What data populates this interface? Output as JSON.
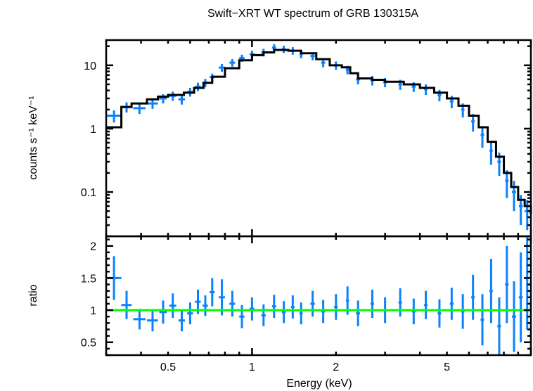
{
  "chart_data": {
    "type": "scatter",
    "title": "Swift−XRT WT spectrum of GRB 130315A",
    "xlabel": "Energy (keV)",
    "x_scale": "log",
    "xlim": [
      0.3,
      10
    ],
    "x_ticks": [
      {
        "value": 0.5,
        "label": "0.5"
      },
      {
        "value": 1,
        "label": "1"
      },
      {
        "value": 2,
        "label": "2"
      },
      {
        "value": 5,
        "label": "5"
      }
    ],
    "colors": {
      "data": "#0a82ff",
      "model": "#000000",
      "unity": "#00ff00",
      "frame": "#000000"
    },
    "panels": [
      {
        "name": "spectrum",
        "ylabel": "counts s⁻¹ keV⁻¹",
        "y_scale": "log",
        "ylim": [
          0.02,
          25
        ],
        "y_ticks": [
          {
            "value": 0.1,
            "label": "0.1"
          },
          {
            "value": 1,
            "label": "1"
          },
          {
            "value": 10,
            "label": "10"
          }
        ],
        "series": [
          {
            "name": "data",
            "style": "crosses",
            "points": [
              {
                "x": 0.32,
                "xerr": 0.02,
                "y": 1.6,
                "yerr": 0.35
              },
              {
                "x": 0.355,
                "xerr": 0.015,
                "y": 2.2,
                "yerr": 0.4
              },
              {
                "x": 0.395,
                "xerr": 0.02,
                "y": 2.1,
                "yerr": 0.4
              },
              {
                "x": 0.44,
                "xerr": 0.02,
                "y": 2.5,
                "yerr": 0.45
              },
              {
                "x": 0.48,
                "xerr": 0.015,
                "y": 3.0,
                "yerr": 0.5
              },
              {
                "x": 0.52,
                "xerr": 0.015,
                "y": 3.3,
                "yerr": 0.55
              },
              {
                "x": 0.56,
                "xerr": 0.015,
                "y": 2.9,
                "yerr": 0.5
              },
              {
                "x": 0.6,
                "xerr": 0.015,
                "y": 3.8,
                "yerr": 0.6
              },
              {
                "x": 0.64,
                "xerr": 0.015,
                "y": 4.6,
                "yerr": 0.7
              },
              {
                "x": 0.68,
                "xerr": 0.015,
                "y": 5.3,
                "yerr": 0.8
              },
              {
                "x": 0.72,
                "xerr": 0.015,
                "y": 6.5,
                "yerr": 0.9
              },
              {
                "x": 0.78,
                "xerr": 0.02,
                "y": 9.2,
                "yerr": 1.3
              },
              {
                "x": 0.85,
                "xerr": 0.02,
                "y": 11,
                "yerr": 1.5
              },
              {
                "x": 0.92,
                "xerr": 0.02,
                "y": 13,
                "yerr": 1.7
              },
              {
                "x": 1.0,
                "xerr": 0.02,
                "y": 15,
                "yerr": 2
              },
              {
                "x": 1.1,
                "xerr": 0.02,
                "y": 16,
                "yerr": 2.2
              },
              {
                "x": 1.2,
                "xerr": 0.02,
                "y": 19,
                "yerr": 2.5
              },
              {
                "x": 1.3,
                "xerr": 0.02,
                "y": 18,
                "yerr": 2.4
              },
              {
                "x": 1.4,
                "xerr": 0.02,
                "y": 17,
                "yerr": 2.3
              },
              {
                "x": 1.5,
                "xerr": 0.02,
                "y": 15,
                "yerr": 2.1
              },
              {
                "x": 1.65,
                "xerr": 0.03,
                "y": 14,
                "yerr": 2
              },
              {
                "x": 1.8,
                "xerr": 0.03,
                "y": 11,
                "yerr": 1.7
              },
              {
                "x": 2.0,
                "xerr": 0.03,
                "y": 10,
                "yerr": 1.5
              },
              {
                "x": 2.2,
                "xerr": 0.03,
                "y": 8.5,
                "yerr": 1.3
              },
              {
                "x": 2.4,
                "xerr": 0.04,
                "y": 6.0,
                "yerr": 1
              },
              {
                "x": 2.7,
                "xerr": 0.04,
                "y": 5.8,
                "yerr": 1
              },
              {
                "x": 3.0,
                "xerr": 0.05,
                "y": 5.4,
                "yerr": 0.9
              },
              {
                "x": 3.4,
                "xerr": 0.05,
                "y": 5.0,
                "yerr": 0.9
              },
              {
                "x": 3.8,
                "xerr": 0.06,
                "y": 4.6,
                "yerr": 0.8
              },
              {
                "x": 4.2,
                "xerr": 0.06,
                "y": 4.2,
                "yerr": 0.8
              },
              {
                "x": 4.7,
                "xerr": 0.07,
                "y": 3.4,
                "yerr": 0.7
              },
              {
                "x": 5.2,
                "xerr": 0.08,
                "y": 2.7,
                "yerr": 0.6
              },
              {
                "x": 5.7,
                "xerr": 0.08,
                "y": 2.0,
                "yerr": 0.5
              },
              {
                "x": 6.2,
                "xerr": 0.09,
                "y": 1.3,
                "yerr": 0.4
              },
              {
                "x": 6.7,
                "xerr": 0.1,
                "y": 0.8,
                "yerr": 0.3
              },
              {
                "x": 7.2,
                "xerr": 0.1,
                "y": 0.45,
                "yerr": 0.18
              },
              {
                "x": 7.7,
                "xerr": 0.12,
                "y": 0.3,
                "yerr": 0.12
              },
              {
                "x": 8.2,
                "xerr": 0.12,
                "y": 0.15,
                "yerr": 0.07
              },
              {
                "x": 8.7,
                "xerr": 0.15,
                "y": 0.1,
                "yerr": 0.05
              },
              {
                "x": 9.2,
                "xerr": 0.15,
                "y": 0.06,
                "yerr": 0.03
              },
              {
                "x": 9.7,
                "xerr": 0.2,
                "y": 0.05,
                "yerr": 0.025
              }
            ]
          },
          {
            "name": "model",
            "style": "step",
            "points": [
              {
                "x": 0.3,
                "y": 1.05
              },
              {
                "x": 0.34,
                "y": 2.2
              },
              {
                "x": 0.37,
                "y": 2.5
              },
              {
                "x": 0.42,
                "y": 2.9
              },
              {
                "x": 0.46,
                "y": 3.2
              },
              {
                "x": 0.5,
                "y": 3.4
              },
              {
                "x": 0.57,
                "y": 3.7
              },
              {
                "x": 0.62,
                "y": 4.4
              },
              {
                "x": 0.67,
                "y": 5.3
              },
              {
                "x": 0.72,
                "y": 6.6
              },
              {
                "x": 0.8,
                "y": 9
              },
              {
                "x": 0.9,
                "y": 12
              },
              {
                "x": 1.0,
                "y": 14.5
              },
              {
                "x": 1.1,
                "y": 16
              },
              {
                "x": 1.2,
                "y": 17.5
              },
              {
                "x": 1.35,
                "y": 17
              },
              {
                "x": 1.5,
                "y": 15.5
              },
              {
                "x": 1.7,
                "y": 12.5
              },
              {
                "x": 1.9,
                "y": 10
              },
              {
                "x": 2.1,
                "y": 9.3
              },
              {
                "x": 2.25,
                "y": 7.5
              },
              {
                "x": 2.4,
                "y": 6.2
              },
              {
                "x": 2.7,
                "y": 5.9
              },
              {
                "x": 3.0,
                "y": 5.5
              },
              {
                "x": 3.5,
                "y": 5.0
              },
              {
                "x": 4.0,
                "y": 4.4
              },
              {
                "x": 4.5,
                "y": 3.7
              },
              {
                "x": 5.0,
                "y": 3.0
              },
              {
                "x": 5.5,
                "y": 2.3
              },
              {
                "x": 6.0,
                "y": 1.6
              },
              {
                "x": 6.5,
                "y": 1.05
              },
              {
                "x": 7.0,
                "y": 0.62
              },
              {
                "x": 7.5,
                "y": 0.36
              },
              {
                "x": 8.0,
                "y": 0.2
              },
              {
                "x": 8.5,
                "y": 0.12
              },
              {
                "x": 9.0,
                "y": 0.075
              },
              {
                "x": 9.5,
                "y": 0.06
              },
              {
                "x": 10.0,
                "y": 0.045
              }
            ]
          }
        ]
      },
      {
        "name": "ratio",
        "ylabel": "ratio",
        "y_scale": "linear",
        "ylim": [
          0.3,
          2.15
        ],
        "y_ticks": [
          {
            "value": 0.5,
            "label": "0.5"
          },
          {
            "value": 1,
            "label": "1"
          },
          {
            "value": 1.5,
            "label": "1.5"
          },
          {
            "value": 2,
            "label": "2"
          }
        ],
        "reference_line": 1,
        "series": [
          {
            "name": "data/model",
            "style": "crosses",
            "points": [
              {
                "x": 0.32,
                "xerr": 0.02,
                "y": 1.5,
                "yerr": 0.34
              },
              {
                "x": 0.355,
                "xerr": 0.015,
                "y": 1.08,
                "yerr": 0.22
              },
              {
                "x": 0.395,
                "xerr": 0.02,
                "y": 0.86,
                "yerr": 0.16
              },
              {
                "x": 0.44,
                "xerr": 0.02,
                "y": 0.84,
                "yerr": 0.17
              },
              {
                "x": 0.48,
                "xerr": 0.015,
                "y": 0.97,
                "yerr": 0.18
              },
              {
                "x": 0.52,
                "xerr": 0.015,
                "y": 1.07,
                "yerr": 0.19
              },
              {
                "x": 0.56,
                "xerr": 0.015,
                "y": 0.84,
                "yerr": 0.17
              },
              {
                "x": 0.6,
                "xerr": 0.015,
                "y": 0.95,
                "yerr": 0.17
              },
              {
                "x": 0.64,
                "xerr": 0.015,
                "y": 1.13,
                "yerr": 0.19
              },
              {
                "x": 0.68,
                "xerr": 0.015,
                "y": 1.07,
                "yerr": 0.16
              },
              {
                "x": 0.72,
                "xerr": 0.015,
                "y": 1.28,
                "yerr": 0.22
              },
              {
                "x": 0.78,
                "xerr": 0.02,
                "y": 1.2,
                "yerr": 0.28
              },
              {
                "x": 0.85,
                "xerr": 0.02,
                "y": 1.1,
                "yerr": 0.2
              },
              {
                "x": 0.92,
                "xerr": 0.02,
                "y": 0.9,
                "yerr": 0.18
              },
              {
                "x": 1.0,
                "xerr": 0.02,
                "y": 1.02,
                "yerr": 0.18
              },
              {
                "x": 1.1,
                "xerr": 0.02,
                "y": 0.92,
                "yerr": 0.17
              },
              {
                "x": 1.2,
                "xerr": 0.02,
                "y": 1.06,
                "yerr": 0.18
              },
              {
                "x": 1.3,
                "xerr": 0.02,
                "y": 0.97,
                "yerr": 0.17
              },
              {
                "x": 1.4,
                "xerr": 0.02,
                "y": 1.05,
                "yerr": 0.18
              },
              {
                "x": 1.5,
                "xerr": 0.02,
                "y": 0.95,
                "yerr": 0.17
              },
              {
                "x": 1.65,
                "xerr": 0.03,
                "y": 1.1,
                "yerr": 0.2
              },
              {
                "x": 1.8,
                "xerr": 0.03,
                "y": 0.98,
                "yerr": 0.18
              },
              {
                "x": 2.0,
                "xerr": 0.03,
                "y": 1.05,
                "yerr": 0.2
              },
              {
                "x": 2.2,
                "xerr": 0.03,
                "y": 1.15,
                "yerr": 0.22
              },
              {
                "x": 2.4,
                "xerr": 0.04,
                "y": 0.95,
                "yerr": 0.2
              },
              {
                "x": 2.7,
                "xerr": 0.04,
                "y": 1.1,
                "yerr": 0.22
              },
              {
                "x": 3.0,
                "xerr": 0.05,
                "y": 1.0,
                "yerr": 0.2
              },
              {
                "x": 3.4,
                "xerr": 0.05,
                "y": 1.12,
                "yerr": 0.22
              },
              {
                "x": 3.8,
                "xerr": 0.06,
                "y": 0.98,
                "yerr": 0.2
              },
              {
                "x": 4.2,
                "xerr": 0.06,
                "y": 1.08,
                "yerr": 0.22
              },
              {
                "x": 4.7,
                "xerr": 0.07,
                "y": 0.95,
                "yerr": 0.22
              },
              {
                "x": 5.2,
                "xerr": 0.08,
                "y": 1.1,
                "yerr": 0.25
              },
              {
                "x": 5.7,
                "xerr": 0.08,
                "y": 0.98,
                "yerr": 0.27
              },
              {
                "x": 6.2,
                "xerr": 0.09,
                "y": 1.2,
                "yerr": 0.35
              },
              {
                "x": 6.7,
                "xerr": 0.1,
                "y": 0.85,
                "yerr": 0.4
              },
              {
                "x": 7.2,
                "xerr": 0.1,
                "y": 1.3,
                "yerr": 0.5
              },
              {
                "x": 7.7,
                "xerr": 0.12,
                "y": 0.75,
                "yerr": 0.45
              },
              {
                "x": 8.2,
                "xerr": 0.12,
                "y": 1.4,
                "yerr": 0.6
              },
              {
                "x": 8.7,
                "xerr": 0.15,
                "y": 0.9,
                "yerr": 0.55
              },
              {
                "x": 9.2,
                "xerr": 0.15,
                "y": 1.2,
                "yerr": 0.7
              },
              {
                "x": 9.7,
                "xerr": 0.2,
                "y": 1.5,
                "yerr": 0.8
              }
            ]
          }
        ]
      }
    ],
    "grid": false,
    "legend": "none"
  }
}
